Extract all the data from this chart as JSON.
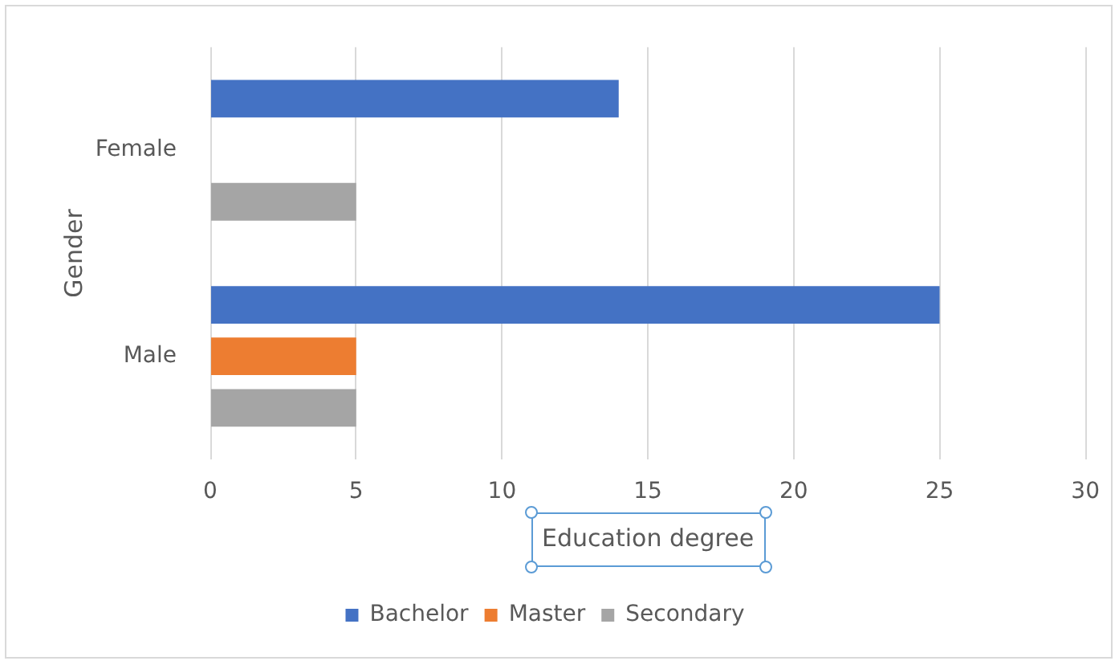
{
  "chart_data": {
    "type": "bar",
    "orientation": "horizontal",
    "categories": [
      "Female",
      "Male"
    ],
    "series": [
      {
        "name": "Bachelor",
        "color": "#4472c4",
        "values": [
          14,
          25
        ]
      },
      {
        "name": "Master",
        "color": "#ed7d31",
        "values": [
          null,
          5
        ]
      },
      {
        "name": "Secondary",
        "color": "#a5a5a5",
        "values": [
          5,
          5
        ]
      }
    ],
    "xlim": [
      0,
      30
    ],
    "xticks": [
      0,
      5,
      10,
      15,
      20,
      25,
      30
    ],
    "xlabel": "Education degree",
    "ylabel": "Gender",
    "grid": "x",
    "legend": "bottom"
  }
}
